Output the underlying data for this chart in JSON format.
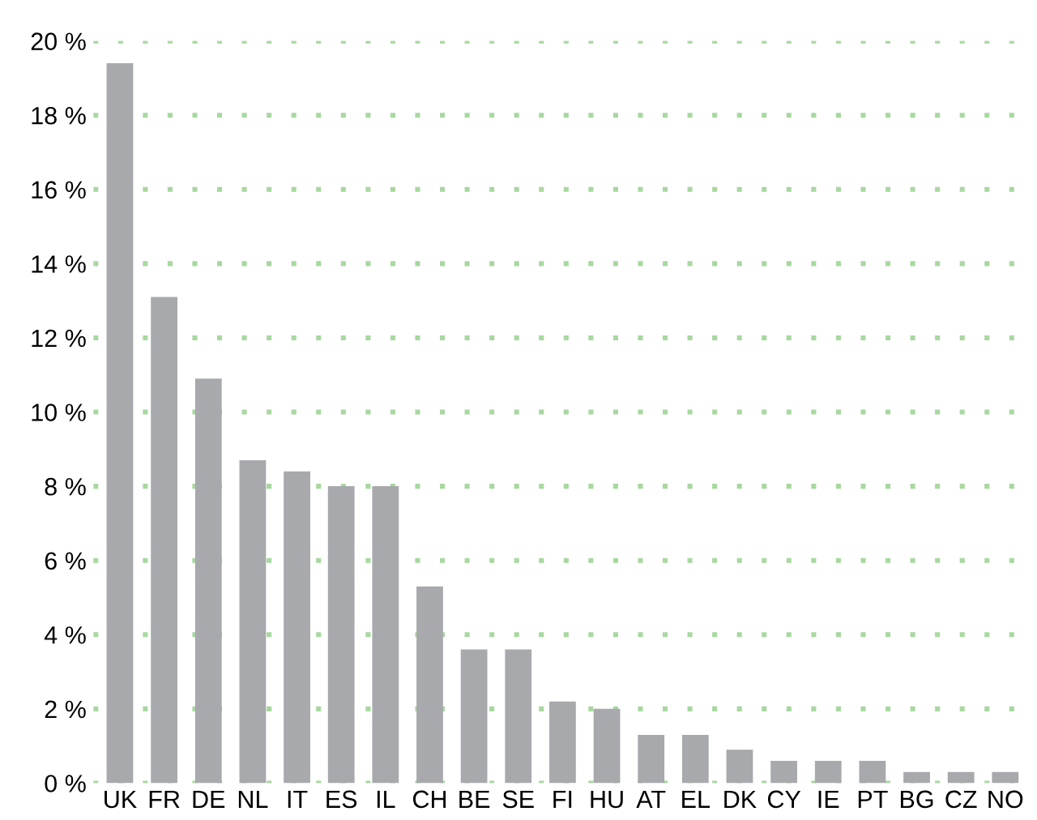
{
  "chart_data": {
    "type": "bar",
    "categories": [
      "UK",
      "FR",
      "DE",
      "NL",
      "IT",
      "ES",
      "IL",
      "CH",
      "BE",
      "SE",
      "FI",
      "HU",
      "AT",
      "EL",
      "DK",
      "CY",
      "IE",
      "PT",
      "BG",
      "CZ",
      "NO"
    ],
    "values": [
      19.4,
      13.1,
      10.9,
      8.7,
      8.4,
      8.0,
      8.0,
      5.3,
      3.6,
      3.6,
      2.2,
      2.0,
      1.3,
      1.3,
      0.9,
      0.6,
      0.6,
      0.6,
      0.3,
      0.3,
      0.3
    ],
    "color": "#a7a9ac",
    "ylim": [
      0,
      20
    ],
    "yticks": [
      {
        "value": 0,
        "label": "0 %"
      },
      {
        "value": 2,
        "label": "2 %"
      },
      {
        "value": 4,
        "label": "4 %"
      },
      {
        "value": 6,
        "label": "6 %"
      },
      {
        "value": 8,
        "label": "8 %"
      },
      {
        "value": 10,
        "label": "10 %"
      },
      {
        "value": 12,
        "label": "12 %"
      },
      {
        "value": 14,
        "label": "14 %"
      },
      {
        "value": 16,
        "label": "16 %"
      },
      {
        "value": 18,
        "label": "18 %"
      },
      {
        "value": 20,
        "label": "20 %"
      }
    ],
    "grid": "y"
  }
}
